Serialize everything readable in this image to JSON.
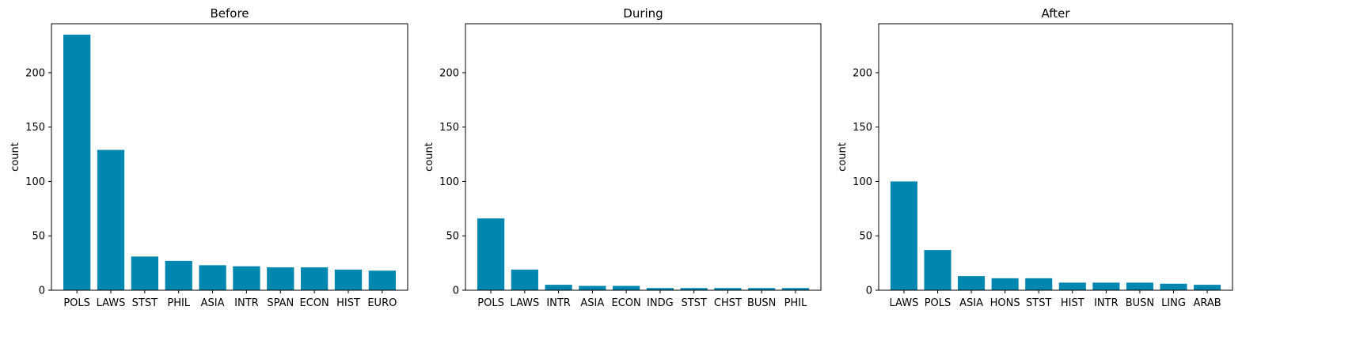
{
  "figure": {
    "bar_color": "#0087b0",
    "axes_color": "#000000",
    "background": "#ffffff"
  },
  "chart_data": [
    {
      "type": "bar",
      "title": "Before",
      "xlabel": "",
      "ylabel": "count",
      "ylim": [
        0,
        245
      ],
      "yticks": [
        0,
        50,
        100,
        150,
        200
      ],
      "grid": false,
      "categories": [
        "POLS",
        "LAWS",
        "STST",
        "PHIL",
        "ASIA",
        "INTR",
        "SPAN",
        "ECON",
        "HIST",
        "EURO"
      ],
      "values": [
        235,
        129,
        31,
        27,
        23,
        22,
        21,
        21,
        19,
        18
      ]
    },
    {
      "type": "bar",
      "title": "During",
      "xlabel": "",
      "ylabel": "count",
      "ylim": [
        0,
        245
      ],
      "yticks": [
        0,
        50,
        100,
        150,
        200
      ],
      "grid": false,
      "categories": [
        "POLS",
        "LAWS",
        "INTR",
        "ASIA",
        "ECON",
        "INDG",
        "STST",
        "CHST",
        "BUSN",
        "PHIL"
      ],
      "values": [
        66,
        19,
        5,
        4,
        4,
        2,
        2,
        2,
        2,
        2
      ]
    },
    {
      "type": "bar",
      "title": "After",
      "xlabel": "",
      "ylabel": "count",
      "ylim": [
        0,
        245
      ],
      "yticks": [
        0,
        50,
        100,
        150,
        200
      ],
      "grid": false,
      "categories": [
        "LAWS",
        "POLS",
        "ASIA",
        "HONS",
        "STST",
        "HIST",
        "INTR",
        "BUSN",
        "LING",
        "ARAB"
      ],
      "values": [
        100,
        37,
        13,
        11,
        11,
        7,
        7,
        7,
        6,
        5
      ]
    }
  ]
}
